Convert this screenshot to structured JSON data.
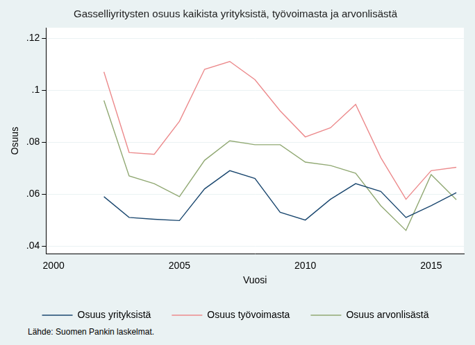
{
  "chart_data": {
    "type": "line",
    "title": "Gasselliyritysten osuus kaikista yrityksistä, työvoimasta ja arvonlisästä",
    "x_label": "Vuosi",
    "y_label": "Osuus",
    "source": "Lähde: Suomen Pankin laskelmat.",
    "x": [
      2002,
      2003,
      2004,
      2005,
      2006,
      2007,
      2008,
      2009,
      2010,
      2011,
      2012,
      2013,
      2014,
      2015,
      2016
    ],
    "series": [
      {
        "name": "Osuus yrityksistä",
        "color": "#1a476f",
        "values": [
          0.059,
          0.051,
          0.0503,
          0.0498,
          0.062,
          0.069,
          0.066,
          0.053,
          0.05,
          0.058,
          0.064,
          0.061,
          0.051,
          0.0555,
          0.0605
        ]
      },
      {
        "name": "Osuus työvoimasta",
        "color": "#ec8a8c",
        "values": [
          0.107,
          0.076,
          0.0753,
          0.088,
          0.108,
          0.111,
          0.104,
          0.092,
          0.082,
          0.0855,
          0.0945,
          0.074,
          0.058,
          0.069,
          0.0703
        ]
      },
      {
        "name": "Osuus arvonlisästä",
        "color": "#90a872",
        "values": [
          0.096,
          0.067,
          0.064,
          0.059,
          0.073,
          0.0805,
          0.079,
          0.079,
          0.0723,
          0.071,
          0.068,
          0.0555,
          0.046,
          0.0675,
          0.0578
        ]
      }
    ],
    "xlim": [
      1999.7,
      2016.3
    ],
    "xticks": [
      2000,
      2005,
      2010,
      2015
    ],
    "ylim": [
      0.037,
      0.124
    ],
    "yticks": [
      {
        "value": 0.04,
        "label": ".04"
      },
      {
        "value": 0.06,
        "label": ".06"
      },
      {
        "value": 0.08,
        "label": ".08"
      },
      {
        "value": 0.1,
        "label": ".1"
      },
      {
        "value": 0.12,
        "label": ".12"
      }
    ],
    "grid": true,
    "legend": "bottom"
  }
}
